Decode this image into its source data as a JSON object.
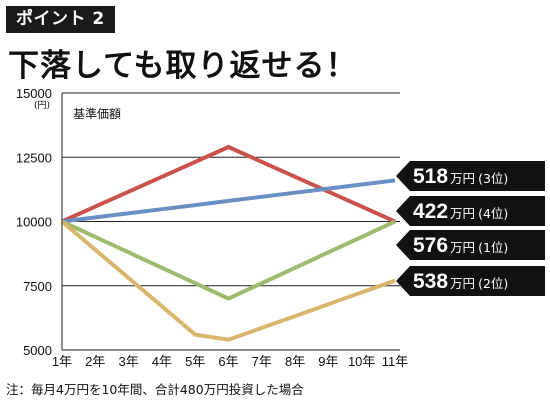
{
  "badge": "ポイント 2",
  "headline": "下落しても取り返せる！",
  "note": "注：毎月4万円を10年間、合計480万円投資した場合",
  "chart_data": {
    "type": "line",
    "ylabel": "基準価額",
    "yunit": "(円)",
    "yticks": [
      5000,
      7500,
      10000,
      12500,
      15000
    ],
    "ylim": [
      5000,
      15000
    ],
    "categories": [
      "1年",
      "2年",
      "3年",
      "4年",
      "5年",
      "6年",
      "7年",
      "8年",
      "9年",
      "10年",
      "11年"
    ],
    "grid": true,
    "series": [
      {
        "color": "#c9534b",
        "values": [
          10000,
          10580,
          11160,
          11740,
          12320,
          12900,
          12320,
          11740,
          11160,
          10580,
          10000
        ],
        "callout": {
          "amount": "422",
          "unit": "万円",
          "rank": "(4位)"
        }
      },
      {
        "color": "#6a8fc4",
        "values": [
          10000,
          10160,
          10320,
          10480,
          10640,
          10800,
          10960,
          11120,
          11280,
          11440,
          11600
        ],
        "callout": {
          "amount": "518",
          "unit": "万円",
          "rank": "(3位)"
        }
      },
      {
        "color": "#9dbb6c",
        "values": [
          10000,
          9400,
          8800,
          8200,
          7600,
          7000,
          7600,
          8200,
          8800,
          9400,
          10000
        ],
        "callout": {
          "amount": "576",
          "unit": "万円",
          "rank": "(1位)"
        }
      },
      {
        "color": "#d9b56e",
        "values": [
          10000,
          8900,
          7800,
          6700,
          5600,
          5400,
          5860,
          6320,
          6780,
          7240,
          7700
        ],
        "callout": {
          "amount": "538",
          "unit": "万円",
          "rank": "(2位)"
        }
      }
    ]
  }
}
